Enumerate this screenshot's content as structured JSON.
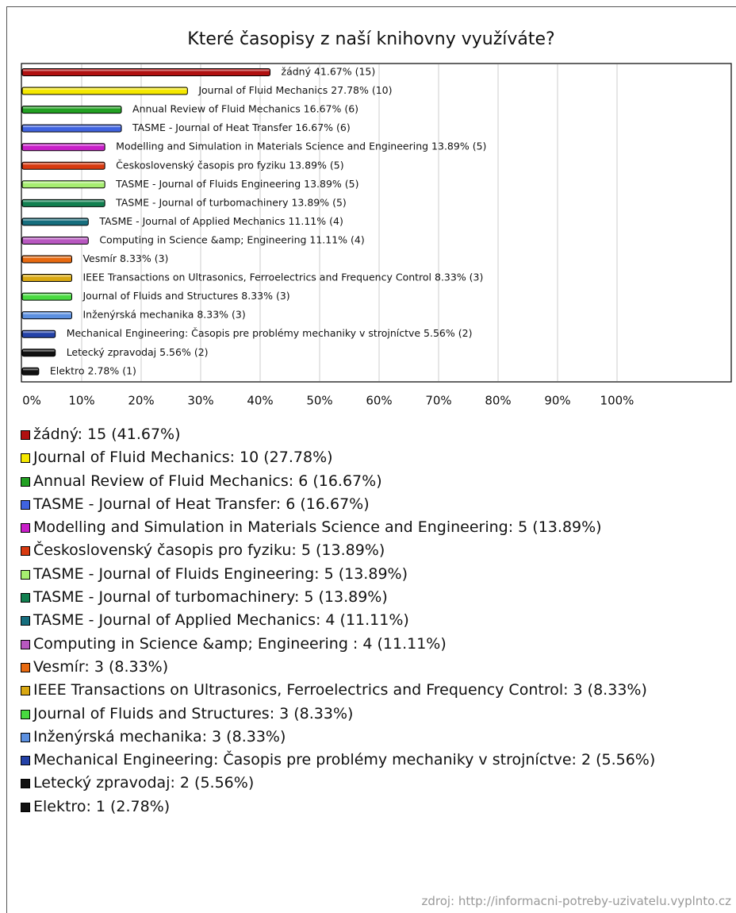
{
  "chart_data": {
    "type": "bar",
    "orientation": "horizontal",
    "title": "Které časopisy z naší knihovny využíváte?",
    "values": [
      41.67,
      27.78,
      16.67,
      16.67,
      13.89,
      13.89,
      13.89,
      13.89,
      11.11,
      11.11,
      8.33,
      8.33,
      8.33,
      8.33,
      5.56,
      5.56,
      2.78
    ],
    "value_labels": [
      "žádný 41.67% (15)",
      "Journal of Fluid Mechanics 27.78% (10)",
      "Annual Review of Fluid Mechanics 16.67% (6)",
      "TASME - Journal of Heat Transfer 16.67% (6)",
      "Modelling and Simulation in Materials Science and Engineering 13.89% (5)",
      "Československý časopis pro fyziku 13.89% (5)",
      "TASME - Journal of Fluids Engineering 13.89% (5)",
      "TASME - Journal of turbomachinery 13.89% (5)",
      "TASME - Journal of Applied Mechanics 11.11% (4)",
      "Computing in Science &amp; Engineering  11.11% (4)",
      "Vesmír 8.33% (3)",
      "IEEE Transactions on Ultrasonics, Ferroelectrics and Frequency Control 8.33% (3)",
      "Journal of Fluids and Structures 8.33% (3)",
      "Inženýrská mechanika 8.33% (3)",
      "Mechanical Engineering: Časopis pre problémy mechaniky v strojníctve 5.56% (2)",
      "Letecký zpravodaj 5.56% (2)",
      "Elektro 2.78% (1)"
    ],
    "colors": [
      "#b01010",
      "#f5e800",
      "#22a022",
      "#3f63e0",
      "#c81ec8",
      "#d83a10",
      "#a6ee70",
      "#128050",
      "#166e7e",
      "#b858c0",
      "#e86a10",
      "#d9a812",
      "#48da40",
      "#5c90e0",
      "#2442a8",
      "#111111",
      "#111111"
    ],
    "legend": [
      "žádný: 15 (41.67%)",
      "Journal of Fluid Mechanics: 10 (27.78%)",
      "Annual Review of Fluid Mechanics: 6 (16.67%)",
      "TASME - Journal of Heat Transfer: 6 (16.67%)",
      "Modelling and Simulation in Materials Science and Engineering: 5 (13.89%)",
      "Československý časopis pro fyziku: 5 (13.89%)",
      "TASME - Journal of Fluids Engineering: 5 (13.89%)",
      "TASME - Journal of turbomachinery: 5 (13.89%)",
      "TASME - Journal of Applied Mechanics: 4 (11.11%)",
      "Computing in Science &amp; Engineering : 4 (11.11%)",
      "Vesmír: 3 (8.33%)",
      "IEEE Transactions on Ultrasonics, Ferroelectrics and Frequency Control: 3 (8.33%)",
      "Journal of Fluids and Structures: 3 (8.33%)",
      "Inženýrská mechanika: 3 (8.33%)",
      "Mechanical Engineering: Časopis pre problémy mechaniky v strojníctve: 2 (5.56%)",
      "Letecký zpravodaj: 2 (5.56%)",
      "Elektro: 1 (2.78%)"
    ],
    "xlim": [
      0,
      119.2
    ],
    "xticks": [
      {
        "value": 0,
        "label": "0%"
      },
      {
        "value": 10,
        "label": "10%"
      },
      {
        "value": 20,
        "label": "20%"
      },
      {
        "value": 30,
        "label": "30%"
      },
      {
        "value": 40,
        "label": "40%"
      },
      {
        "value": 50,
        "label": "50%"
      },
      {
        "value": 60,
        "label": "60%"
      },
      {
        "value": 70,
        "label": "70%"
      },
      {
        "value": 80,
        "label": "80%"
      },
      {
        "value": 90,
        "label": "90%"
      },
      {
        "value": 100,
        "label": "100%"
      }
    ],
    "grid": true,
    "source": "zdroj: http://informacni-potreby-uzivatelu.vyplnto.cz"
  }
}
